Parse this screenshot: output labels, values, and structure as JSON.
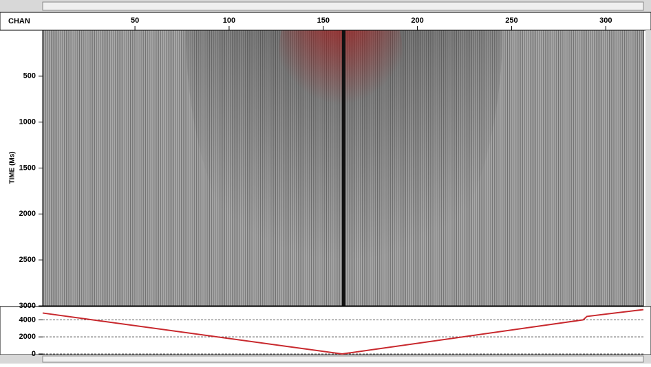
{
  "chart_data": [
    {
      "type": "seismic",
      "x_label": "CHAN",
      "y_label": "TIME (Ms)",
      "xlim": [
        1,
        320
      ],
      "xticks": [
        50,
        100,
        150,
        200,
        250,
        300
      ],
      "ylim": [
        0,
        3000
      ],
      "yticks": [
        500,
        1000,
        1500,
        2000,
        2500,
        3000
      ],
      "y_inverted": true
    },
    {
      "type": "line",
      "x": [
        1,
        160,
        288,
        290,
        320
      ],
      "series": [
        {
          "color": "#c8282d",
          "values": [
            4800,
            0,
            4000,
            4400,
            5200
          ]
        }
      ],
      "xlim": [
        1,
        320
      ],
      "ylim": [
        0,
        5400
      ],
      "yticks": [
        0,
        2000,
        4000
      ],
      "grid": true
    }
  ]
}
